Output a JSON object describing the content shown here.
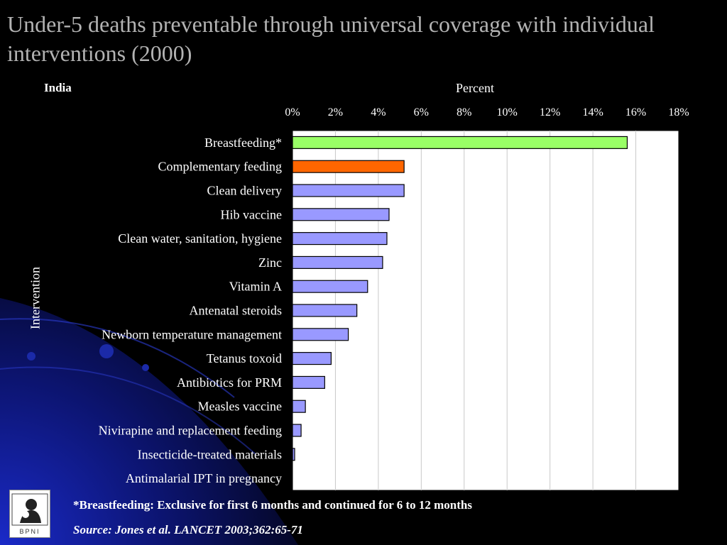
{
  "slide": {
    "title": "Under-5 deaths preventable through universal coverage with individual interventions (2000)",
    "country": "India",
    "footnote": "*Breastfeeding: Exclusive for first 6 months and continued for 6 to 12 months",
    "source": "Source: Jones et al. LANCET 2003;362:65-71",
    "logo": {
      "text": "BPNI",
      "icon": "mother-child-logo-icon"
    }
  },
  "colors": {
    "background": "#000000",
    "title": "#b3b3b3",
    "plot_area": "#ffffff",
    "gridline": "#c8c8c8",
    "bar_default": "#9999ff",
    "bar_highlight_1": "#99ff66",
    "bar_highlight_2": "#ff6600",
    "bar_outline": "#000000"
  },
  "chart_data": {
    "type": "bar",
    "orientation": "horizontal",
    "title": "",
    "xlabel": "Percent",
    "ylabel": "Intervention",
    "xlim": [
      0,
      18
    ],
    "x_ticks": [
      "0%",
      "2%",
      "4%",
      "6%",
      "8%",
      "10%",
      "12%",
      "14%",
      "16%",
      "18%"
    ],
    "x_axis_position": "top",
    "grid": true,
    "categories": [
      "Breastfeeding*",
      "Complementary feeding",
      "Clean delivery",
      "Hib vaccine",
      "Clean water, sanitation, hygiene",
      "Zinc",
      "Vitamin A",
      "Antenatal steroids",
      "Newborn temperature management",
      "Tetanus toxoid",
      "Antibiotics for PRM",
      "Measles vaccine",
      "Nivirapine and replacement feeding",
      "Insecticide-treated materials",
      "Antimalarial IPT in pregnancy"
    ],
    "values": [
      15.6,
      5.2,
      5.2,
      4.5,
      4.4,
      4.2,
      3.5,
      3.0,
      2.6,
      1.8,
      1.5,
      0.6,
      0.4,
      0.1,
      0.0
    ],
    "bar_colors": [
      "#99ff66",
      "#ff6600",
      "#9999ff",
      "#9999ff",
      "#9999ff",
      "#9999ff",
      "#9999ff",
      "#9999ff",
      "#9999ff",
      "#9999ff",
      "#9999ff",
      "#9999ff",
      "#9999ff",
      "#9999ff",
      "#9999ff"
    ]
  }
}
